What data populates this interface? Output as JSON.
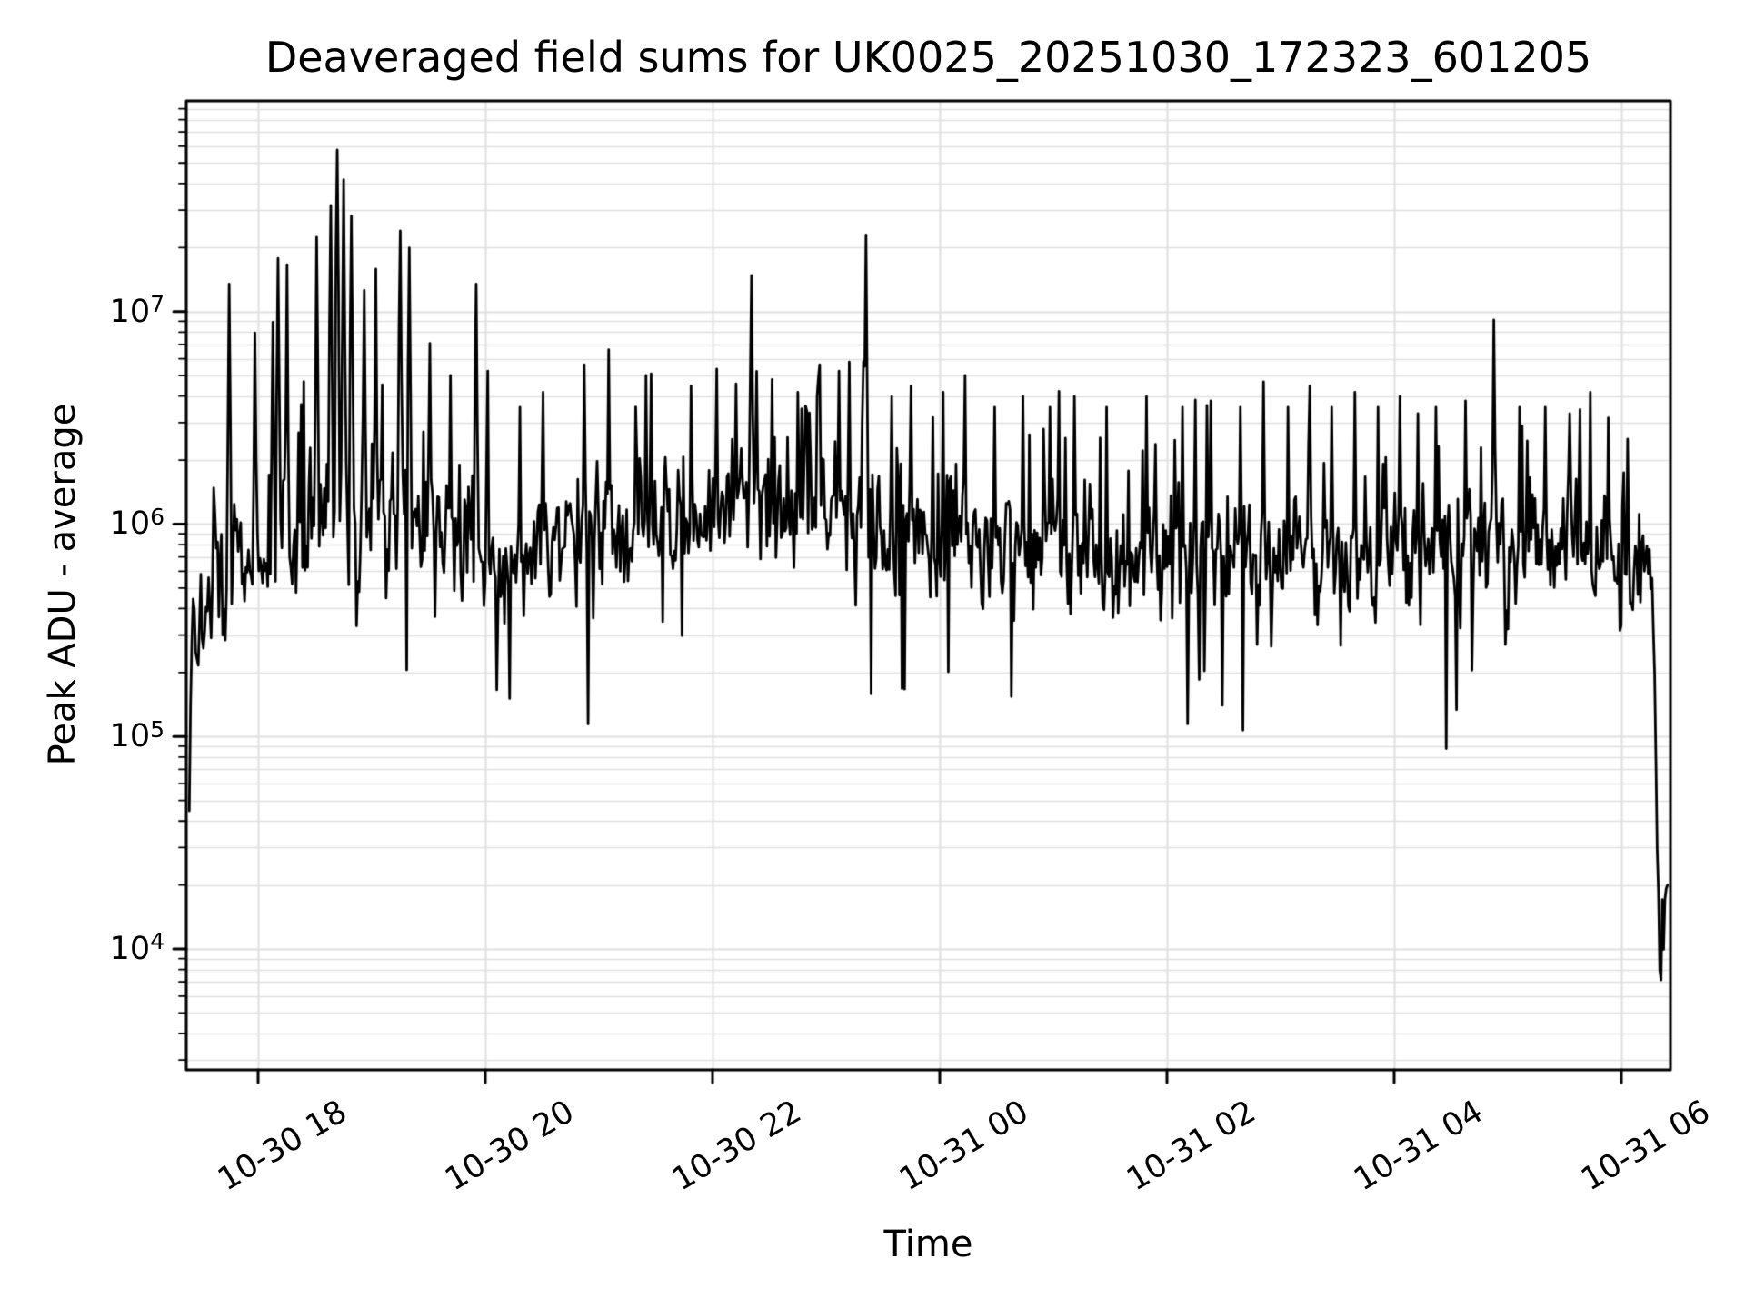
{
  "chart_data": {
    "type": "line",
    "title": "Deaveraged field sums for UK0025_20251030_172323_601205",
    "xlabel": "Time",
    "ylabel": "Peak ADU - average",
    "x_axis": {
      "tick_labels": [
        "10-30 18",
        "10-30 20",
        "10-30 22",
        "10-31 00",
        "10-31 02",
        "10-31 04",
        "10-31 06"
      ],
      "data_start": "10-30 17:21",
      "data_end": "10-31 06:20",
      "grid": true
    },
    "y_axis": {
      "scale": "log",
      "tick_base": "10",
      "tick_exponents": [
        4,
        5,
        6,
        7
      ],
      "limits_log10": [
        3.431,
        7.991
      ],
      "grid": "major+minor"
    },
    "legend": null,
    "series": [
      {
        "name": "deaveraged field sum",
        "color": "#000000",
        "points": 1150,
        "noise_halfwidth_log10": 0.3,
        "slow_noise_log10": 0.18,
        "envelope_log10": [
          [
            0.002,
            5.5
          ],
          [
            0.02,
            5.7
          ],
          [
            0.05,
            5.85
          ],
          [
            0.08,
            6.0
          ],
          [
            0.1,
            6.1
          ],
          [
            0.13,
            6.02
          ],
          [
            0.17,
            5.92
          ],
          [
            0.22,
            5.88
          ],
          [
            0.27,
            5.9
          ],
          [
            0.32,
            5.98
          ],
          [
            0.37,
            6.06
          ],
          [
            0.41,
            6.02
          ],
          [
            0.46,
            5.98
          ],
          [
            0.51,
            5.95
          ],
          [
            0.56,
            5.92
          ],
          [
            0.61,
            5.85
          ],
          [
            0.66,
            5.8
          ],
          [
            0.71,
            5.82
          ],
          [
            0.76,
            5.85
          ],
          [
            0.81,
            5.86
          ],
          [
            0.86,
            5.9
          ],
          [
            0.91,
            5.9
          ],
          [
            0.95,
            5.88
          ],
          [
            0.988,
            5.78
          ]
        ],
        "spikes_log10": [
          [
            0.029,
            7.13
          ],
          [
            0.046,
            6.9
          ],
          [
            0.058,
            6.95
          ],
          [
            0.062,
            7.25
          ],
          [
            0.068,
            7.22
          ],
          [
            0.088,
            7.35
          ],
          [
            0.097,
            7.5
          ],
          [
            0.102,
            7.76
          ],
          [
            0.106,
            7.62
          ],
          [
            0.111,
            7.45
          ],
          [
            0.12,
            7.1
          ],
          [
            0.128,
            7.2
          ],
          [
            0.144,
            7.38
          ],
          [
            0.15,
            7.3
          ],
          [
            0.164,
            6.85
          ],
          [
            0.178,
            6.7
          ],
          [
            0.195,
            7.13
          ],
          [
            0.203,
            6.72
          ],
          [
            0.225,
            6.55
          ],
          [
            0.24,
            6.62
          ],
          [
            0.268,
            6.75
          ],
          [
            0.285,
            6.82
          ],
          [
            0.31,
            6.7
          ],
          [
            0.34,
            6.65
          ],
          [
            0.357,
            6.73
          ],
          [
            0.37,
            6.66
          ],
          [
            0.381,
            7.17
          ],
          [
            0.395,
            6.68
          ],
          [
            0.412,
            6.62
          ],
          [
            0.427,
            6.75
          ],
          [
            0.44,
            6.72
          ],
          [
            0.458,
            7.36
          ],
          [
            0.475,
            6.6
          ],
          [
            0.488,
            6.65
          ],
          [
            0.51,
            6.62
          ],
          [
            0.525,
            6.7
          ],
          [
            0.545,
            6.55
          ],
          [
            0.564,
            6.6
          ],
          [
            0.582,
            6.55
          ],
          [
            0.598,
            6.6
          ],
          [
            0.62,
            6.55
          ],
          [
            0.647,
            6.6
          ],
          [
            0.671,
            6.55
          ],
          [
            0.69,
            6.58
          ],
          [
            0.71,
            6.55
          ],
          [
            0.726,
            6.67
          ],
          [
            0.742,
            6.55
          ],
          [
            0.757,
            6.65
          ],
          [
            0.772,
            6.55
          ],
          [
            0.787,
            6.62
          ],
          [
            0.803,
            6.55
          ],
          [
            0.818,
            6.6
          ],
          [
            0.83,
            6.52
          ],
          [
            0.842,
            6.55
          ],
          [
            0.862,
            6.58
          ],
          [
            0.881,
            6.96
          ],
          [
            0.898,
            6.55
          ],
          [
            0.916,
            6.55
          ],
          [
            0.932,
            6.52
          ],
          [
            0.946,
            6.62
          ],
          [
            0.958,
            6.5
          ],
          [
            0.971,
            6.4
          ]
        ],
        "hot_zones": [
          [
            0.06,
            0.165
          ],
          [
            0.33,
            0.47
          ]
        ],
        "dip_zones": [
          [
            0.5,
            0.88
          ]
        ],
        "start_drop_log10": 4.65,
        "end_drop": {
          "start_frac": 0.988,
          "from_log10": 5.75,
          "to_log10": 4.0,
          "min_log10": 3.62
        },
        "seed": 20251030
      }
    ],
    "style": {
      "grid_color": "#e0e0e0",
      "frame_color": "#000000",
      "background": "#ffffff"
    }
  }
}
